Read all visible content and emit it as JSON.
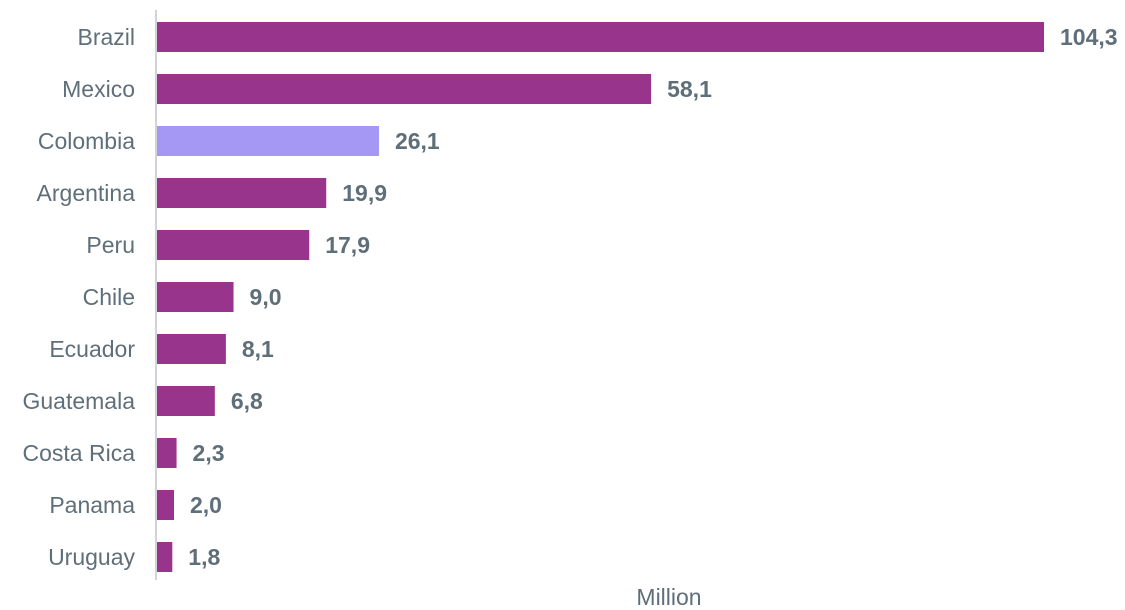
{
  "chart_data": {
    "type": "bar",
    "orientation": "horizontal",
    "xlabel": "Million",
    "xlim": [
      0,
      104.3
    ],
    "grid": false,
    "legend": "none",
    "categories": [
      "Brazil",
      "Mexico",
      "Colombia",
      "Argentina",
      "Peru",
      "Chile",
      "Ecuador",
      "Guatemala",
      "Costa Rica",
      "Panama",
      "Uruguay"
    ],
    "values": [
      104.3,
      58.1,
      26.1,
      19.9,
      17.9,
      9.0,
      8.1,
      6.8,
      2.3,
      2.0,
      1.8
    ],
    "value_labels": [
      "104,3",
      "58,1",
      "26,1",
      "19,9",
      "17,9",
      "9,0",
      "8,1",
      "6,8",
      "2,3",
      "2,0",
      "1,8"
    ],
    "highlight_category": "Colombia",
    "colors": {
      "bar": "#99348c",
      "highlight": "#a597f4",
      "axis": "#d0d4d8",
      "text": "#5f6f7a"
    }
  }
}
